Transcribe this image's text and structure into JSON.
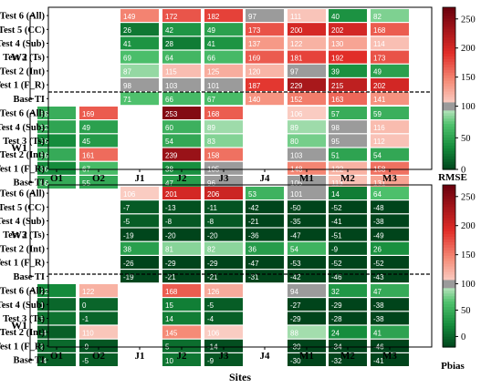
{
  "chart_data": [
    {
      "type": "heatmap",
      "metric": "RMSE",
      "legend_label": "RMSE",
      "x_label": "",
      "columns": [
        "O1",
        "O2",
        "J1",
        "J2",
        "J3",
        "J4",
        "M1",
        "M2",
        "M3"
      ],
      "rows": [
        "Test 6 (All)",
        "Test 5 (CC)",
        "Test 4 (Sub)",
        "Test 3 (Ts)",
        "Test 2 (Int)",
        "Test 1 (F_R)",
        "Base TI",
        "Test 6 (All)",
        "Test 4 (Sub)",
        "Test 3 (Ts)",
        "Test 2 (Int)",
        "Test 1 (F_R)",
        "Base TI"
      ],
      "groups": [
        {
          "name": "W2",
          "row_start": 0,
          "row_end": 6
        },
        {
          "name": "W1",
          "row_start": 7,
          "row_end": 12
        }
      ],
      "values": [
        [
          null,
          null,
          149,
          172,
          182,
          97,
          111,
          40,
          82
        ],
        [
          null,
          null,
          26,
          42,
          49,
          173,
          200,
          202,
          168
        ],
        [
          null,
          null,
          41,
          28,
          41,
          137,
          122,
          130,
          114
        ],
        [
          null,
          null,
          69,
          64,
          66,
          169,
          181,
          192,
          173
        ],
        [
          null,
          null,
          87,
          115,
          125,
          120,
          97,
          39,
          49
        ],
        [
          null,
          null,
          98,
          103,
          101,
          187,
          229,
          215,
          202
        ],
        [
          null,
          null,
          71,
          66,
          67,
          140,
          152,
          163,
          141
        ],
        [
          58,
          169,
          null,
          253,
          168,
          null,
          106,
          57,
          59
        ],
        [
          52,
          49,
          null,
          60,
          89,
          null,
          89,
          98,
          116
        ],
        [
          36,
          45,
          null,
          54,
          83,
          null,
          80,
          95,
          112
        ],
        [
          56,
          161,
          null,
          239,
          158,
          null,
          103,
          51,
          54
        ],
        [
          36,
          67,
          null,
          38,
          105,
          null,
          148,
          122,
          158
        ],
        [
          56,
          55,
          null,
          47,
          96,
          null,
          105,
          113,
          131
        ]
      ],
      "colorbar": {
        "min": 0,
        "max": 270,
        "mid": 100,
        "ticks": [
          0,
          50,
          100,
          150,
          200,
          250
        ]
      }
    },
    {
      "type": "heatmap",
      "metric": "Pbias",
      "legend_label": "Pbias",
      "x_label": "Sites",
      "columns": [
        "O1",
        "O2",
        "J1",
        "J2",
        "J3",
        "J4",
        "M1",
        "M2",
        "M3"
      ],
      "rows": [
        "Test 6 (All)",
        "Test 5 (CC)",
        "Test 4 (Sub)",
        "Test 3 (Ts)",
        "Test 2 (Int)",
        "Test 1 (F_R)",
        "Base TI",
        "Test 6 (All)",
        "Test 4 (Sub)",
        "Test 3 (Ts)",
        "Test 2 (Int)",
        "Test 1 (F_R)",
        "Base TI"
      ],
      "groups": [
        {
          "name": "W2",
          "row_start": 0,
          "row_end": 6
        },
        {
          "name": "W1",
          "row_start": 7,
          "row_end": 12
        }
      ],
      "values": [
        [
          null,
          null,
          106,
          201,
          206,
          53,
          101,
          14,
          64
        ],
        [
          null,
          null,
          -7,
          -13,
          -11,
          -42,
          -50,
          -52,
          -48
        ],
        [
          null,
          null,
          -5,
          -8,
          -8,
          -21,
          -35,
          -41,
          -38
        ],
        [
          null,
          null,
          -19,
          -20,
          -20,
          -36,
          -47,
          -51,
          -49
        ],
        [
          null,
          null,
          38,
          81,
          82,
          36,
          54,
          -9,
          26
        ],
        [
          null,
          null,
          -26,
          -29,
          -29,
          -47,
          -53,
          -52,
          -52
        ],
        [
          null,
          null,
          -19,
          -21,
          -21,
          -31,
          -42,
          -46,
          -43
        ],
        [
          22,
          122,
          null,
          168,
          126,
          null,
          94,
          32,
          47
        ],
        [
          1,
          0,
          null,
          15,
          -5,
          null,
          -27,
          -29,
          -38
        ],
        [
          8,
          -1,
          null,
          14,
          -4,
          null,
          -29,
          -28,
          -38
        ],
        [
          -4,
          110,
          null,
          145,
          106,
          null,
          88,
          24,
          41
        ],
        [
          2,
          -9,
          null,
          5,
          -14,
          null,
          -39,
          -34,
          -46
        ],
        [
          -4,
          -5,
          null,
          10,
          -9,
          null,
          -30,
          -32,
          -41
        ]
      ],
      "colorbar": {
        "min": -20,
        "max": 270,
        "mid": 100,
        "ticks": [
          0,
          50,
          100,
          150,
          200,
          250
        ]
      }
    }
  ]
}
